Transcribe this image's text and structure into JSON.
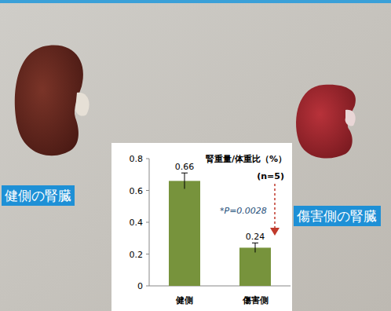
{
  "chart_data": {
    "type": "bar",
    "title": "腎重量/体重比（%）",
    "subtitle": "(n=5)",
    "annotations": [
      "*P=0.0028"
    ],
    "categories": [
      "健側",
      "傷害側"
    ],
    "values": [
      0.66,
      0.24
    ],
    "errors": [
      0.05,
      0.03
    ],
    "color": "#77933c",
    "ylim": [
      0,
      0.8
    ],
    "yticks": [
      0,
      0.2,
      0.4,
      0.6,
      0.8
    ],
    "grid": false,
    "data_labels": true
  },
  "photo": {
    "labels": [
      "健側の腎臓",
      "傷害側の腎臓"
    ]
  }
}
